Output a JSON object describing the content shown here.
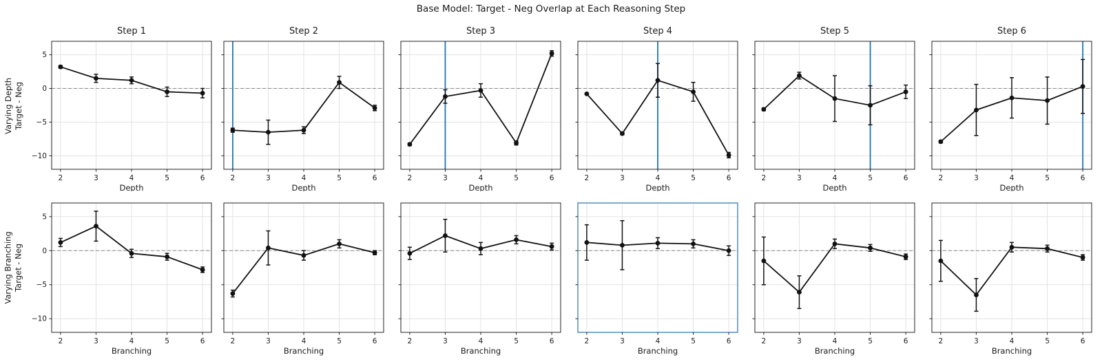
{
  "chart_data": {
    "type": "line",
    "suptitle": "Base Model: Target - Neg Overlap at Each Reasoning Step",
    "x": [
      2,
      3,
      4,
      5,
      6
    ],
    "xticks": [
      2,
      3,
      4,
      5,
      6
    ],
    "yticks": [
      5,
      0,
      -5,
      -10
    ],
    "xlim": [
      1.75,
      6.25
    ],
    "ylim": [
      -12,
      7
    ],
    "grid": true,
    "zero_dashed_line": true,
    "legend": "none",
    "colors": {
      "line": "#111111",
      "marker": "#111111",
      "vline": "#1f77b4",
      "highlight_border": "#5b92c2",
      "grid": "#e3e3e3",
      "zero_line": "#8a8a8a",
      "spine": "#222222",
      "text": "#1a1a1a"
    },
    "rows": [
      {
        "id": "depth",
        "ylabel": [
          "Varying Depth",
          "Target - Neg"
        ],
        "xlabel": "Depth",
        "show_titles": true,
        "subplots": [
          {
            "title": "Step 1",
            "y": [
              3.2,
              1.5,
              1.2,
              -0.5,
              -0.7
            ],
            "yerr": [
              0.2,
              0.6,
              0.5,
              0.7,
              0.7
            ],
            "vline": null,
            "highlight": false
          },
          {
            "title": "Step 2",
            "y": [
              -6.2,
              -6.5,
              -6.2,
              0.9,
              -2.9
            ],
            "yerr": [
              0.3,
              1.8,
              0.5,
              0.9,
              0.4
            ],
            "vline": 2,
            "highlight": false
          },
          {
            "title": "Step 3",
            "y": [
              -8.3,
              -1.2,
              -0.3,
              -8.1,
              5.2
            ],
            "yerr": [
              0.2,
              1.0,
              1.0,
              0.3,
              0.4
            ],
            "vline": 3,
            "highlight": false
          },
          {
            "title": "Step 4",
            "y": [
              -0.8,
              -6.7,
              1.2,
              -0.5,
              -9.9
            ],
            "yerr": [
              0.1,
              0.2,
              2.5,
              1.4,
              0.4
            ],
            "vline": 4,
            "highlight": false
          },
          {
            "title": "Step 5",
            "y": [
              -3.1,
              1.9,
              -1.5,
              -2.5,
              -0.5
            ],
            "yerr": [
              0.2,
              0.5,
              3.4,
              2.9,
              1.0
            ],
            "vline": 5,
            "highlight": false
          },
          {
            "title": "Step 6",
            "y": [
              -7.9,
              -3.2,
              -1.4,
              -1.8,
              0.3
            ],
            "yerr": [
              0.2,
              3.8,
              3.0,
              3.5,
              4.0
            ],
            "vline": 6,
            "highlight": false
          }
        ]
      },
      {
        "id": "branching",
        "ylabel": [
          "Varying Branching",
          "Target - Neg"
        ],
        "xlabel": "Branching",
        "show_titles": false,
        "subplots": [
          {
            "title": "Step 1",
            "y": [
              1.2,
              3.6,
              -0.4,
              -0.9,
              -2.8
            ],
            "yerr": [
              0.6,
              2.2,
              0.6,
              0.5,
              0.4
            ],
            "vline": null,
            "highlight": false
          },
          {
            "title": "Step 2",
            "y": [
              -6.3,
              0.4,
              -0.7,
              1.0,
              -0.3
            ],
            "yerr": [
              0.5,
              2.5,
              0.7,
              0.6,
              0.3
            ],
            "vline": null,
            "highlight": false
          },
          {
            "title": "Step 3",
            "y": [
              -0.4,
              2.2,
              0.3,
              1.6,
              0.6
            ],
            "yerr": [
              0.9,
              2.4,
              0.9,
              0.6,
              0.5
            ],
            "vline": null,
            "highlight": false
          },
          {
            "title": "Step 4",
            "y": [
              1.2,
              0.8,
              1.1,
              1.0,
              0.0
            ],
            "yerr": [
              2.6,
              3.6,
              0.8,
              0.6,
              0.7
            ],
            "vline": null,
            "highlight": true
          },
          {
            "title": "Step 5",
            "y": [
              -1.5,
              -6.1,
              1.0,
              0.4,
              -0.9
            ],
            "yerr": [
              3.5,
              2.4,
              0.7,
              0.5,
              0.4
            ],
            "vline": null,
            "highlight": false
          },
          {
            "title": "Step 6",
            "y": [
              -1.5,
              -6.5,
              0.5,
              0.3,
              -1.0
            ],
            "yerr": [
              3.0,
              2.4,
              0.7,
              0.5,
              0.4
            ],
            "vline": null,
            "highlight": false
          }
        ]
      }
    ]
  }
}
